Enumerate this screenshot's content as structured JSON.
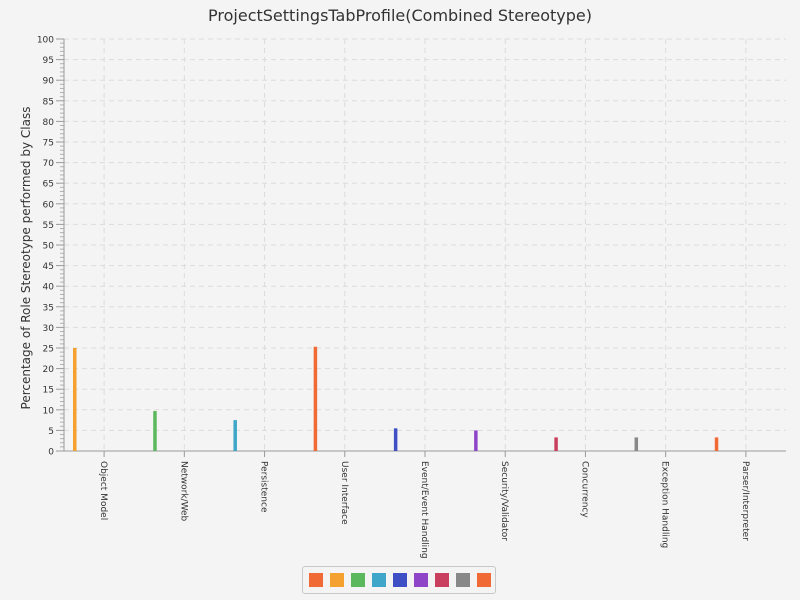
{
  "chart_data": {
    "type": "bar",
    "title": "ProjectSettingsTabProfile(Combined Stereotype)",
    "ylabel": "Percentage of Role Stereotype performed by Class",
    "xlabel": "",
    "ylim": [
      0,
      100
    ],
    "y_major_ticks": [
      "0",
      "5",
      "10",
      "15",
      "20",
      "25",
      "30",
      "35",
      "40",
      "45",
      "50",
      "55",
      "60",
      "65",
      "70",
      "75",
      "80",
      "85",
      "90",
      "95",
      "100"
    ],
    "grid": true,
    "legend_position": "bottom",
    "categories": [
      "Object Model",
      "Network/Web",
      "Persistence",
      "User Interface",
      "Event/Event Handling",
      "Security/Validator",
      "Concurrency",
      "Exception Handling",
      "Parser/Interpreter"
    ],
    "values": [
      25,
      9.7,
      7.5,
      25.3,
      5.5,
      5,
      3.3,
      3.3,
      3.3
    ],
    "bar_colors": [
      "#f5a12f",
      "#5cb85c",
      "#3fa6c9",
      "#f06a35",
      "#3e50c4",
      "#8f45c7",
      "#c8405e",
      "#888888",
      "#f06a35"
    ],
    "legend_colors": [
      "#f06a35",
      "#f5a12f",
      "#5cb85c",
      "#3fa6c9",
      "#3e50c4",
      "#8f45c7",
      "#c8405e",
      "#888888",
      "#f06a35"
    ]
  }
}
